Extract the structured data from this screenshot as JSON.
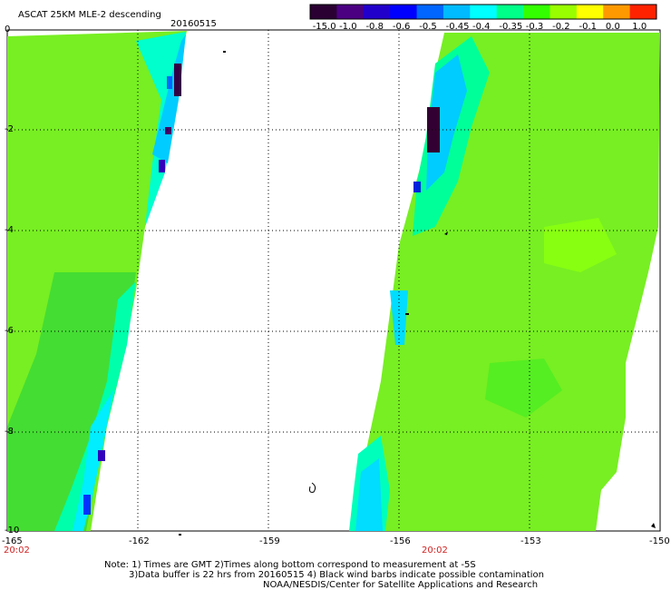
{
  "title": "ASCAT 25KM MLE-2 descending",
  "date": "20160515",
  "colorbar": {
    "labels": [
      "-15.0",
      "-1.0",
      "-0.8",
      "-0.6",
      "-0.5",
      "-0.45",
      "-0.4",
      "-0.35",
      "-0.3",
      "-0.2",
      "-0.1",
      "0.0",
      "1.0"
    ],
    "colors": [
      "#2a0033",
      "#4b0082",
      "#2200cc",
      "#0000ff",
      "#0066ff",
      "#00bbff",
      "#00ffff",
      "#00ff88",
      "#33ff00",
      "#99ff00",
      "#ffff00",
      "#ff9900",
      "#ff2200"
    ]
  },
  "axes": {
    "y_labels": [
      "0",
      "-2",
      "-4",
      "-6",
      "-8",
      "-10"
    ],
    "x_labels": [
      "-165",
      "-162",
      "-159",
      "-156",
      "-153",
      "-150"
    ]
  },
  "times": [
    "20:02",
    "20:02"
  ],
  "notes": [
    "Note: 1) Times are GMT 2)Times along bottom correspond to measurement at -5S",
    "3)Data buffer is 22 hrs from 20160515 4) Black wind barbs indicate possible contamination",
    "NOAA/NESDIS/Center for Satellite Applications and Research"
  ],
  "palette": {
    "green": "#55ee22",
    "lime": "#88ff11",
    "bright_green": "#22ff33",
    "cyan_green": "#00ff99",
    "cyan": "#00ffff",
    "sky": "#00ccff",
    "blue": "#0033ff",
    "purple": "#4400aa",
    "dark_purple": "#330033"
  }
}
